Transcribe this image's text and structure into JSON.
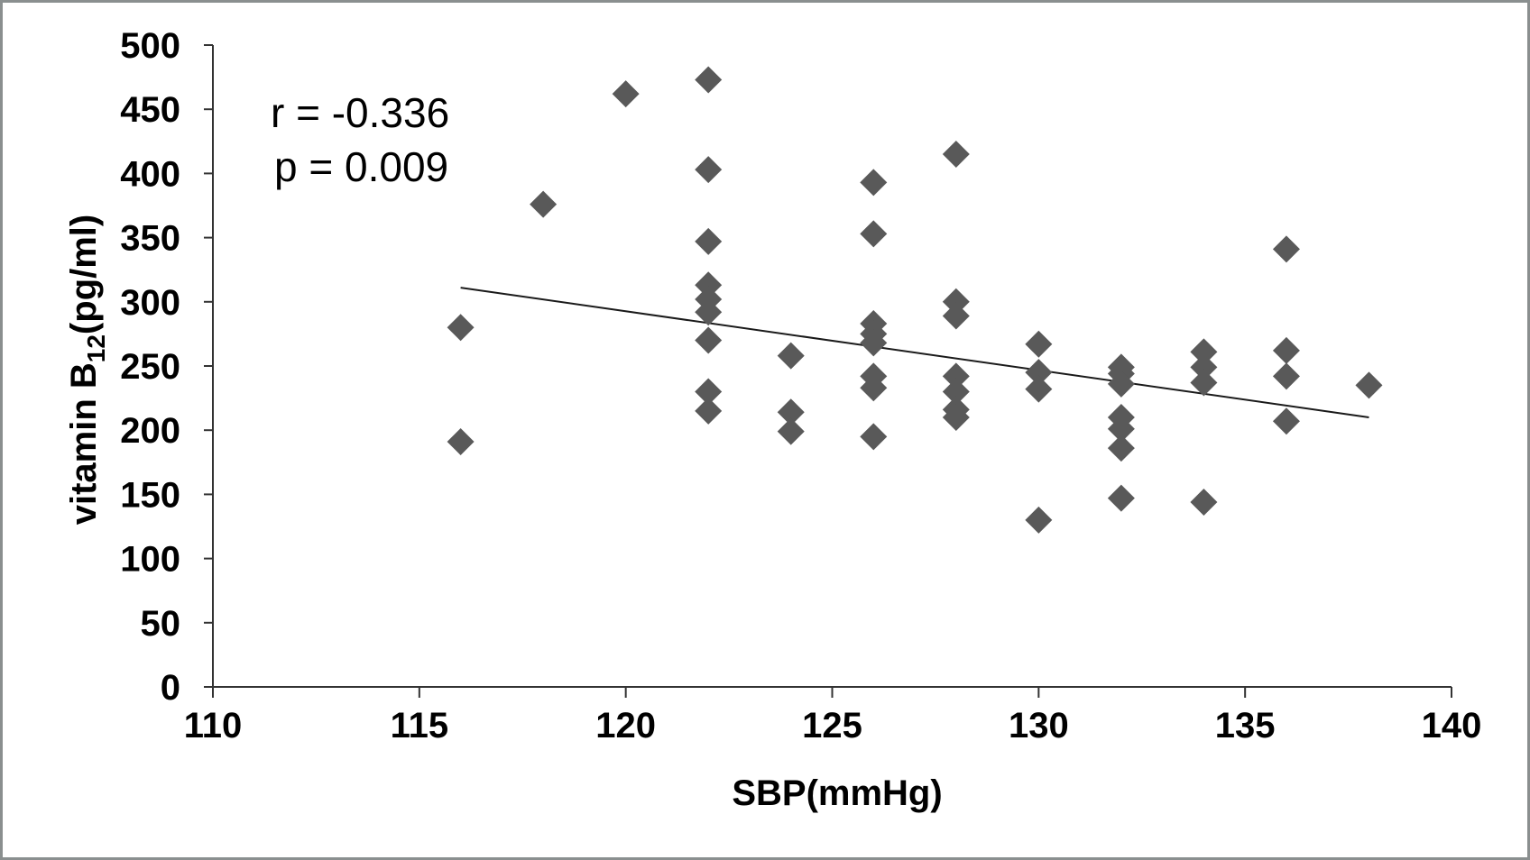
{
  "chart_data": {
    "type": "scatter",
    "xlabel": "SBP(mmHg)",
    "ylabel_main": "vitamin B",
    "ylabel_sub": "12",
    "ylabel_tail": "(pg/ml)",
    "xlim": [
      110,
      140
    ],
    "ylim": [
      0,
      500
    ],
    "xticks": [
      110,
      115,
      120,
      125,
      130,
      135,
      140
    ],
    "yticks": [
      0,
      50,
      100,
      150,
      200,
      250,
      300,
      350,
      400,
      450,
      500
    ],
    "grid": false,
    "annotations": [
      "r = -0.336",
      "p = 0.009"
    ],
    "marker": "diamond",
    "marker_color": "#595959",
    "trendline": {
      "x": [
        116,
        138
      ],
      "y": [
        311,
        210
      ]
    },
    "points": [
      {
        "x": 116,
        "y": 280
      },
      {
        "x": 116,
        "y": 191
      },
      {
        "x": 118,
        "y": 376
      },
      {
        "x": 120,
        "y": 462
      },
      {
        "x": 122,
        "y": 473
      },
      {
        "x": 122,
        "y": 403
      },
      {
        "x": 122,
        "y": 347
      },
      {
        "x": 122,
        "y": 313
      },
      {
        "x": 122,
        "y": 302
      },
      {
        "x": 122,
        "y": 292
      },
      {
        "x": 122,
        "y": 270
      },
      {
        "x": 122,
        "y": 230
      },
      {
        "x": 122,
        "y": 215
      },
      {
        "x": 124,
        "y": 258
      },
      {
        "x": 124,
        "y": 214
      },
      {
        "x": 124,
        "y": 199
      },
      {
        "x": 126,
        "y": 393
      },
      {
        "x": 126,
        "y": 353
      },
      {
        "x": 126,
        "y": 283
      },
      {
        "x": 126,
        "y": 275
      },
      {
        "x": 126,
        "y": 268
      },
      {
        "x": 126,
        "y": 242
      },
      {
        "x": 126,
        "y": 233
      },
      {
        "x": 126,
        "y": 195
      },
      {
        "x": 128,
        "y": 415
      },
      {
        "x": 128,
        "y": 300
      },
      {
        "x": 128,
        "y": 289
      },
      {
        "x": 128,
        "y": 242
      },
      {
        "x": 128,
        "y": 230
      },
      {
        "x": 128,
        "y": 216
      },
      {
        "x": 128,
        "y": 210
      },
      {
        "x": 130,
        "y": 267
      },
      {
        "x": 130,
        "y": 245
      },
      {
        "x": 130,
        "y": 232
      },
      {
        "x": 130,
        "y": 130
      },
      {
        "x": 132,
        "y": 249
      },
      {
        "x": 132,
        "y": 244
      },
      {
        "x": 132,
        "y": 236
      },
      {
        "x": 132,
        "y": 210
      },
      {
        "x": 132,
        "y": 201
      },
      {
        "x": 132,
        "y": 186
      },
      {
        "x": 132,
        "y": 147
      },
      {
        "x": 134,
        "y": 261
      },
      {
        "x": 134,
        "y": 249
      },
      {
        "x": 134,
        "y": 237
      },
      {
        "x": 134,
        "y": 144
      },
      {
        "x": 136,
        "y": 341
      },
      {
        "x": 136,
        "y": 262
      },
      {
        "x": 136,
        "y": 242
      },
      {
        "x": 136,
        "y": 207
      },
      {
        "x": 138,
        "y": 235
      }
    ]
  }
}
